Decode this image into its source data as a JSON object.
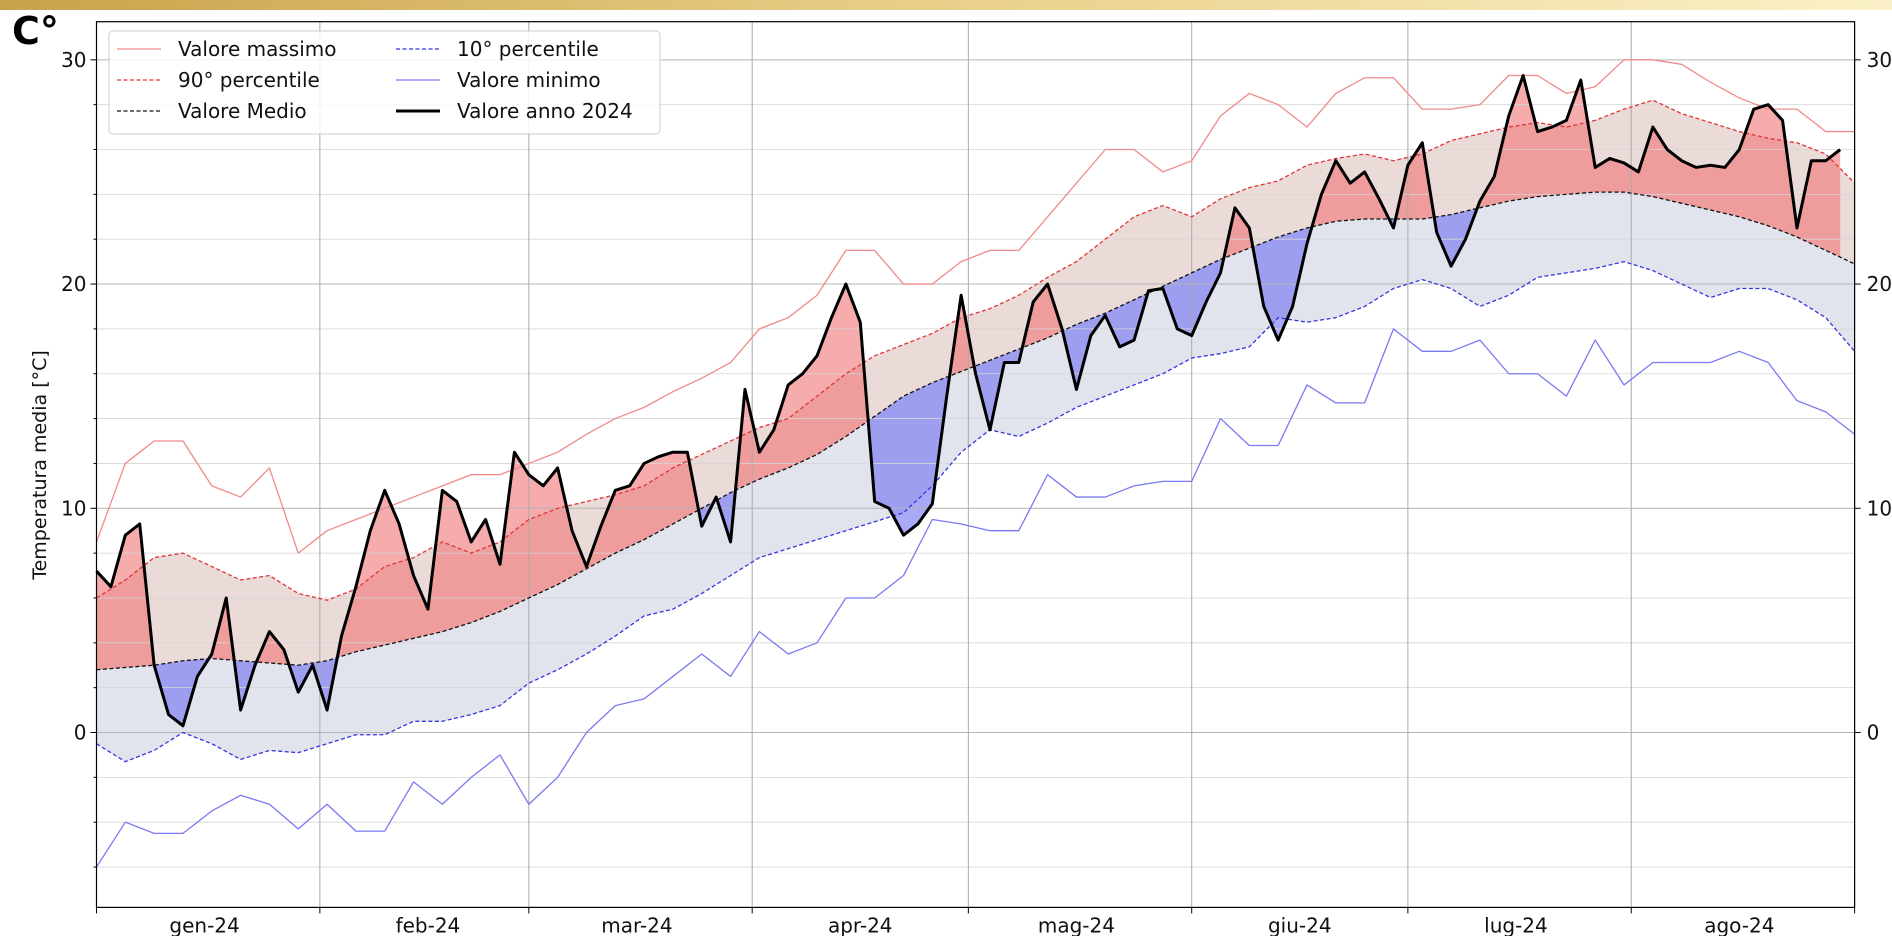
{
  "chart_data": {
    "type": "line",
    "corner_label": "C°",
    "y_label": "Temperatura media [°C]",
    "xlim": [
      0,
      244
    ],
    "xticks": [
      {
        "value": 15,
        "label": "gen-24"
      },
      {
        "value": 46,
        "label": "feb-24"
      },
      {
        "value": 75,
        "label": "mar-24"
      },
      {
        "value": 106,
        "label": "apr-24"
      },
      {
        "value": 136,
        "label": "mag-24"
      },
      {
        "value": 167,
        "label": "giu-24"
      },
      {
        "value": 197,
        "label": "lug-24"
      },
      {
        "value": 228,
        "label": "ago-24"
      }
    ],
    "xminorticks": [
      0,
      31,
      60,
      91,
      121,
      152,
      182,
      213,
      244
    ],
    "ylim": [
      -7.8,
      31.7
    ],
    "yticks": [
      0,
      10,
      20,
      30
    ],
    "yminorticks": [
      -6,
      -4,
      -2,
      2,
      4,
      6,
      8,
      12,
      14,
      16,
      18,
      22,
      24,
      26,
      28
    ],
    "grid": true,
    "legend": "upper left",
    "band_upper_color": "#e6d3d1",
    "band_lower_color": "#dcdfea",
    "above_color": "#f07575",
    "below_color": "#6f6ff2",
    "x": [
      0,
      4,
      8,
      12,
      16,
      20,
      24,
      28,
      32,
      36,
      40,
      44,
      48,
      52,
      56,
      60,
      64,
      68,
      72,
      76,
      80,
      84,
      88,
      92,
      96,
      100,
      104,
      108,
      112,
      116,
      120,
      124,
      128,
      132,
      136,
      140,
      144,
      148,
      152,
      156,
      160,
      164,
      168,
      172,
      176,
      180,
      184,
      188,
      192,
      196,
      200,
      204,
      208,
      212,
      216,
      220,
      224,
      228,
      232,
      236,
      240,
      244
    ],
    "series": [
      {
        "name": "Valore massimo",
        "color": "#f08a8a",
        "dash": false,
        "width": 1.3,
        "values": [
          8.5,
          12.0,
          13.0,
          13.0,
          11.0,
          10.5,
          11.8,
          8.0,
          9.0,
          9.5,
          10.0,
          10.5,
          11.0,
          11.5,
          11.5,
          12.0,
          12.5,
          13.3,
          14.0,
          14.5,
          15.2,
          15.8,
          16.5,
          18.0,
          18.5,
          19.5,
          21.5,
          21.5,
          20.0,
          20.0,
          21.0,
          21.5,
          21.5,
          23.0,
          24.5,
          26.0,
          26.0,
          25.0,
          25.5,
          27.5,
          28.5,
          28.0,
          27.0,
          28.5,
          29.2,
          29.2,
          27.8,
          27.8,
          28.0,
          29.3,
          29.3,
          28.5,
          28.8,
          30.0,
          30.0,
          29.8,
          29.0,
          28.3,
          27.8,
          27.8,
          26.8,
          26.8
        ]
      },
      {
        "name": "90° percentile",
        "color": "#e03535",
        "dash": true,
        "width": 1.3,
        "values": [
          6.0,
          6.8,
          7.8,
          8.0,
          7.4,
          6.8,
          7.0,
          6.2,
          5.9,
          6.4,
          7.4,
          7.8,
          8.5,
          8.0,
          8.5,
          9.5,
          10.0,
          10.3,
          10.6,
          11.0,
          11.8,
          12.4,
          13.0,
          13.6,
          14.0,
          15.0,
          16.0,
          16.8,
          17.3,
          17.8,
          18.5,
          18.9,
          19.5,
          20.3,
          21.0,
          22.0,
          23.0,
          23.5,
          23.0,
          23.8,
          24.3,
          24.6,
          25.3,
          25.6,
          25.8,
          25.5,
          25.8,
          26.4,
          26.7,
          27.0,
          27.2,
          27.0,
          27.3,
          27.8,
          28.2,
          27.6,
          27.2,
          26.8,
          26.5,
          26.3,
          25.8,
          24.5
        ]
      },
      {
        "name": "Valore Medio",
        "color": "#111111",
        "dash": true,
        "width": 1.3,
        "values": [
          2.8,
          2.9,
          3.0,
          3.2,
          3.3,
          3.2,
          3.1,
          3.0,
          3.2,
          3.6,
          3.9,
          4.2,
          4.5,
          4.9,
          5.4,
          6.0,
          6.6,
          7.3,
          8.0,
          8.6,
          9.3,
          10.0,
          10.7,
          11.3,
          11.8,
          12.4,
          13.2,
          14.1,
          15.0,
          15.6,
          16.1,
          16.6,
          17.1,
          17.6,
          18.2,
          18.7,
          19.3,
          19.9,
          20.5,
          21.1,
          21.6,
          22.1,
          22.5,
          22.8,
          22.9,
          22.9,
          22.9,
          23.1,
          23.4,
          23.7,
          23.9,
          24.0,
          24.1,
          24.1,
          23.9,
          23.6,
          23.3,
          23.0,
          22.6,
          22.1,
          21.5,
          20.9
        ]
      },
      {
        "name": "10° percentile",
        "color": "#3535e0",
        "dash": true,
        "width": 1.3,
        "values": [
          -0.5,
          -1.3,
          -0.8,
          0.0,
          -0.5,
          -1.2,
          -0.8,
          -0.9,
          -0.5,
          -0.1,
          -0.1,
          0.5,
          0.5,
          0.8,
          1.2,
          2.2,
          2.8,
          3.5,
          4.3,
          5.2,
          5.5,
          6.2,
          7.0,
          7.8,
          8.2,
          8.6,
          9.0,
          9.4,
          9.8,
          11.0,
          12.5,
          13.5,
          13.2,
          13.8,
          14.5,
          15.0,
          15.5,
          16.0,
          16.7,
          16.9,
          17.2,
          18.5,
          18.3,
          18.5,
          19.0,
          19.8,
          20.2,
          19.8,
          19.0,
          19.5,
          20.3,
          20.5,
          20.7,
          21.0,
          20.6,
          20.0,
          19.4,
          19.8,
          19.8,
          19.3,
          18.5,
          17.0
        ]
      },
      {
        "name": "Valore minimo",
        "color": "#7a7af2",
        "dash": false,
        "width": 1.3,
        "values": [
          -6.0,
          -4.0,
          -4.5,
          -4.5,
          -3.5,
          -2.8,
          -3.2,
          -4.3,
          -3.2,
          -4.4,
          -4.4,
          -2.2,
          -3.2,
          -2.0,
          -1.0,
          -3.2,
          -2.0,
          0.0,
          1.2,
          1.5,
          2.5,
          3.5,
          2.5,
          4.5,
          3.5,
          4.0,
          6.0,
          6.0,
          7.0,
          9.5,
          9.3,
          9.0,
          9.0,
          11.5,
          10.5,
          10.5,
          11.0,
          11.2,
          11.2,
          14.0,
          12.8,
          12.8,
          15.5,
          14.7,
          14.7,
          18.0,
          17.0,
          17.0,
          17.5,
          16.0,
          16.0,
          15.0,
          17.5,
          15.5,
          16.5,
          16.5,
          16.5,
          17.0,
          16.5,
          14.8,
          14.3,
          13.3
        ]
      },
      {
        "name": "Valore anno 2024",
        "color": "#000000",
        "dash": false,
        "width": 3,
        "x": [
          0,
          2,
          4,
          6,
          8,
          10,
          12,
          14,
          16,
          18,
          20,
          22,
          24,
          26,
          28,
          30,
          32,
          34,
          36,
          38,
          40,
          42,
          44,
          46,
          48,
          50,
          52,
          54,
          56,
          58,
          60,
          62,
          64,
          66,
          68,
          70,
          72,
          74,
          76,
          78,
          80,
          82,
          84,
          86,
          88,
          90,
          92,
          94,
          96,
          98,
          100,
          102,
          104,
          106,
          108,
          110,
          112,
          114,
          116,
          118,
          120,
          122,
          124,
          126,
          128,
          130,
          132,
          134,
          136,
          138,
          140,
          142,
          144,
          146,
          148,
          150,
          152,
          154,
          156,
          158,
          160,
          162,
          164,
          166,
          168,
          170,
          172,
          174,
          176,
          178,
          180,
          182,
          184,
          186,
          188,
          190,
          192,
          194,
          196,
          198,
          200,
          202,
          204,
          206,
          208,
          210,
          212,
          214,
          216,
          218,
          220,
          222,
          224,
          226,
          228,
          230,
          232,
          234,
          236,
          238,
          240,
          242
        ],
        "values": [
          7.2,
          6.5,
          8.8,
          9.3,
          3.0,
          0.8,
          0.3,
          2.5,
          3.5,
          6.0,
          1.0,
          3.0,
          4.5,
          3.7,
          1.8,
          3.0,
          1.0,
          4.3,
          6.5,
          9.0,
          10.8,
          9.3,
          7.0,
          5.5,
          10.8,
          10.3,
          8.5,
          9.5,
          7.5,
          12.5,
          11.5,
          11.0,
          11.8,
          9.0,
          7.4,
          9.2,
          10.8,
          11.0,
          12.0,
          12.3,
          12.5,
          12.5,
          9.2,
          10.5,
          8.5,
          15.3,
          12.5,
          13.5,
          15.5,
          16.0,
          16.8,
          18.5,
          20.0,
          18.3,
          10.3,
          10.0,
          8.8,
          9.3,
          10.2,
          15.0,
          19.5,
          16.0,
          13.5,
          16.5,
          16.5,
          19.2,
          20.0,
          18.0,
          15.3,
          17.7,
          18.6,
          17.2,
          17.5,
          19.7,
          19.8,
          18.0,
          17.7,
          19.2,
          20.5,
          23.4,
          22.5,
          19.0,
          17.5,
          19.0,
          21.8,
          24.0,
          25.5,
          24.5,
          25.0,
          23.8,
          22.5,
          25.3,
          26.3,
          22.3,
          20.8,
          22.0,
          23.7,
          24.8,
          27.5,
          29.3,
          26.8,
          27.0,
          27.3,
          29.1,
          25.2,
          25.6,
          25.4,
          25.0,
          27.0,
          26.0,
          25.5,
          25.2,
          25.3,
          25.2,
          26.0,
          27.8,
          28.0,
          27.3,
          22.5,
          25.5,
          25.5,
          26.0
        ]
      }
    ]
  }
}
